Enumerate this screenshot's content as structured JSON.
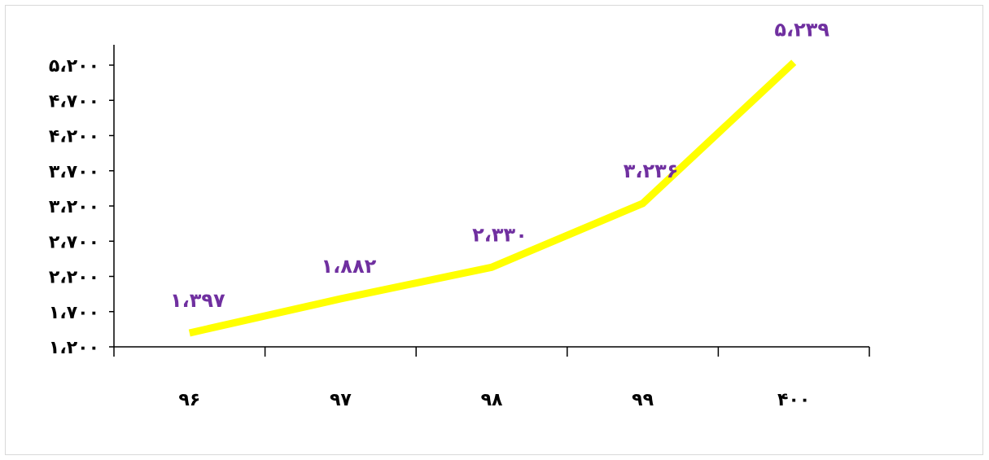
{
  "chart_data": {
    "type": "line",
    "title": "",
    "xlabel": "",
    "ylabel": "",
    "categories": [
      "۹۶",
      "۹۷",
      "۹۸",
      "۹۹",
      "۴۰۰"
    ],
    "series": [
      {
        "values": [
          1397,
          1882,
          2330,
          3236,
          5239
        ],
        "value_labels": [
          "۱،۳۹۷",
          "۱،۸۸۲",
          "۲،۳۳۰",
          "۳،۲۳۶",
          "۵،۲۳۹"
        ],
        "color": "#ffff00"
      }
    ],
    "ylim": [
      1200,
      5200
    ],
    "y_ticks": [
      1200,
      1700,
      2200,
      2700,
      3200,
      3700,
      4200,
      4700,
      5200
    ],
    "y_tick_labels": [
      "۱،۲۰۰",
      "۱،۷۰۰",
      "۲،۲۰۰",
      "۲،۷۰۰",
      "۳،۲۰۰",
      "۳،۷۰۰",
      "۴،۲۰۰",
      "۴،۷۰۰",
      "۵،۲۰۰"
    ],
    "grid": false,
    "legend": "none",
    "label_color": "#7030a0",
    "axis_color": "#000000"
  }
}
